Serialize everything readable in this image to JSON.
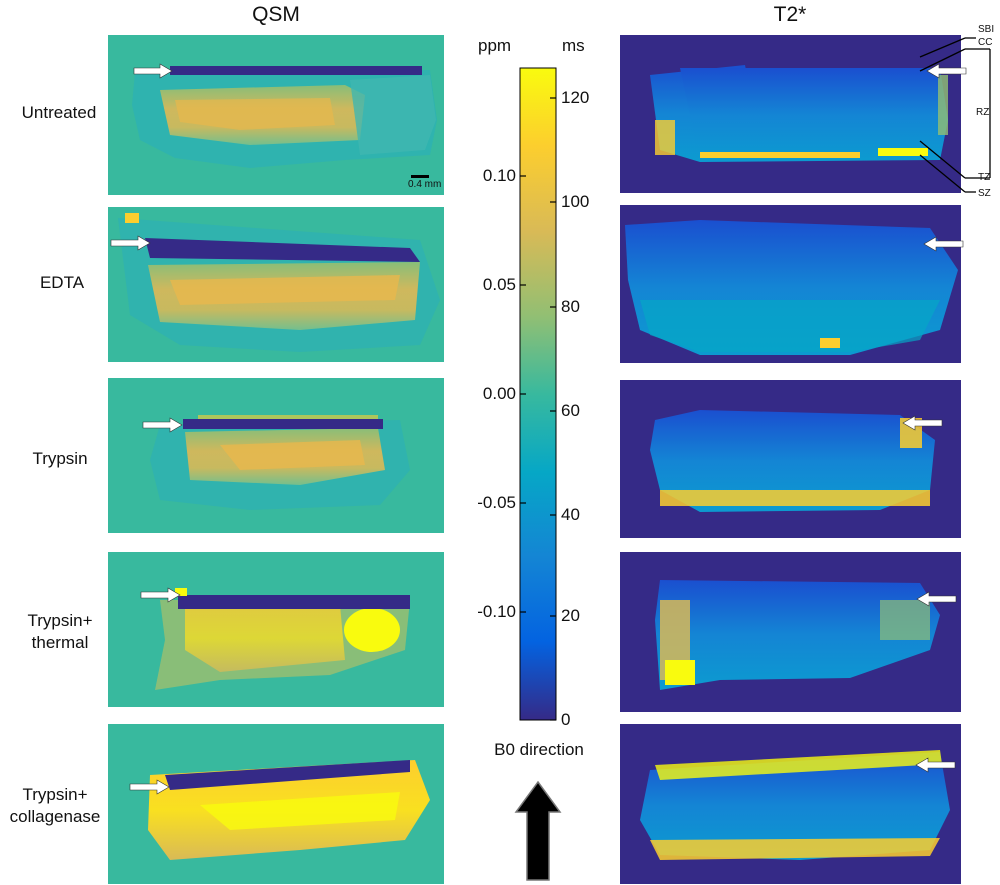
{
  "columns": {
    "qsm": "QSM",
    "t2star": "T2*"
  },
  "rows": [
    {
      "label_lines": [
        "Untreated"
      ]
    },
    {
      "label_lines": [
        "EDTA"
      ]
    },
    {
      "label_lines": [
        "Trypsin"
      ]
    },
    {
      "label_lines": [
        "Trypsin+",
        "thermal"
      ]
    },
    {
      "label_lines": [
        "Trypsin+",
        "collagenase"
      ]
    }
  ],
  "scale_bar": "0.4 mm",
  "colorbar": {
    "left_unit": "ppm",
    "right_unit": "ms",
    "left_ticks": [
      {
        "label": "0.10",
        "value": 0.1
      },
      {
        "label": "0.05",
        "value": 0.05
      },
      {
        "label": "0.00",
        "value": 0.0
      },
      {
        "label": "-0.05",
        "value": -0.05
      },
      {
        "label": "-0.10",
        "value": -0.1
      }
    ],
    "right_ticks": [
      {
        "label": "120",
        "value": 120
      },
      {
        "label": "100",
        "value": 100
      },
      {
        "label": "80",
        "value": 80
      },
      {
        "label": "60",
        "value": 60
      },
      {
        "label": "40",
        "value": 40
      },
      {
        "label": "20",
        "value": 20
      },
      {
        "label": "0",
        "value": 0
      }
    ],
    "ppm_range": [
      -0.15,
      0.15
    ],
    "ms_range": [
      0,
      125
    ],
    "colormap": "parula",
    "colors": [
      "#352a87",
      "#0363e1",
      "#1485d4",
      "#06a7c6",
      "#38b99e",
      "#92bf73",
      "#d9ba56",
      "#fcce2e",
      "#f9fb0e"
    ]
  },
  "b0_label": "B0 direction",
  "zone_labels": [
    "SBI",
    "CC",
    "RZ",
    "TZ",
    "SZ"
  ],
  "background": {
    "qsm": "#38b99e",
    "t2star": "#352a87"
  }
}
